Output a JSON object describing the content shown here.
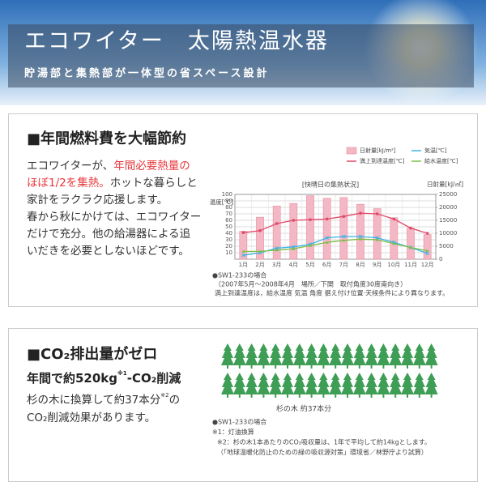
{
  "header": {
    "title": "エコワイター　太陽熱温水器",
    "subtitle": "貯湯部と集熱部が一体型の省スペース設計"
  },
  "section1": {
    "heading": "■年間燃料費を大幅節約",
    "lines": [
      [
        {
          "text": "エコワイターが、"
        },
        {
          "text": "年間必要熱量の",
          "highlight": true
        }
      ],
      [
        {
          "text": "ほぼ1/2を集熱。",
          "highlight": true
        },
        {
          "text": "ホットな暮らしと"
        }
      ],
      [
        {
          "text": "家計をラクラク応援します。"
        }
      ],
      [
        {
          "text": "春から秋にかけては、エコワイター"
        }
      ],
      [
        {
          "text": "だけで充分。他の給湯器による追"
        }
      ],
      [
        {
          "text": "いだきを必要としないほどです。"
        }
      ]
    ],
    "notes": [
      "●SW1-233の場合",
      "（2007年5月〜2008年4月　場所／下関　取付角度30度南向き）",
      "満上到達温度は，給水温度 気温 角度 据え付け位置·天候条件により異なります。"
    ]
  },
  "chart_data": {
    "type": "bar",
    "title": "[快晴日の集熱状況]",
    "y_label": "温度[℃]",
    "y2_label": "日射量[kJ/㎡]",
    "categories": [
      "1月",
      "2月",
      "3月",
      "4月",
      "5月",
      "6月",
      "7月",
      "8月",
      "9月",
      "10月",
      "11月",
      "12月"
    ],
    "series": [
      {
        "name": "日射量[kJ/m²]",
        "type": "bar",
        "axis": "y2",
        "color": "#f4b8c4",
        "values": [
          10800,
          16200,
          20500,
          21500,
          24500,
          23500,
          23800,
          21200,
          19500,
          16000,
          12000,
          9500
        ]
      },
      {
        "name": "気温[℃]",
        "type": "line",
        "color": "#3ab4e6",
        "marker": "x",
        "values": [
          6,
          10,
          17,
          19,
          23,
          33,
          35,
          35,
          33,
          26,
          18,
          9
        ]
      },
      {
        "name": "満上到達温度[℃]",
        "type": "line",
        "color": "#e04a6a",
        "marker": "circle",
        "values": [
          41,
          44,
          55,
          60,
          61,
          62,
          66,
          71,
          70,
          62,
          48,
          40
        ]
      },
      {
        "name": "給水温度[℃]",
        "type": "line",
        "color": "#7cc04a",
        "marker": "triangle",
        "values": [
          12,
          12,
          14,
          16,
          21,
          26,
          29,
          31,
          30,
          24,
          18,
          13
        ]
      }
    ],
    "ylim": [
      0,
      100
    ],
    "yticks": [
      0,
      10,
      20,
      30,
      40,
      50,
      60,
      70,
      80,
      90,
      100
    ],
    "y2lim": [
      0,
      25000
    ],
    "y2ticks": [
      0,
      5000,
      10000,
      15000,
      20000,
      25000
    ],
    "grid": true
  },
  "section2": {
    "heading": "■CO₂排出量がゼロ",
    "line1": {
      "before": "年間で約520kg",
      "sup": "※1",
      "after": "-CO₂削減"
    },
    "line2": {
      "before": "杉の木に換算して約37本分",
      "sup": "※2",
      "after": "の"
    },
    "line3": "CO₂削減効果があります。",
    "tree_caption": "杉の木 約37本分",
    "notes": [
      "●SW1-233の場合",
      "※1：灯油換算",
      "※2：杉の木1本あたりのCO₂吸収量は、1年で平均して約14kgとします。",
      "（「地球温暖化防止のための緑の吸収源対策」環境省／林野庁より試算）"
    ]
  }
}
